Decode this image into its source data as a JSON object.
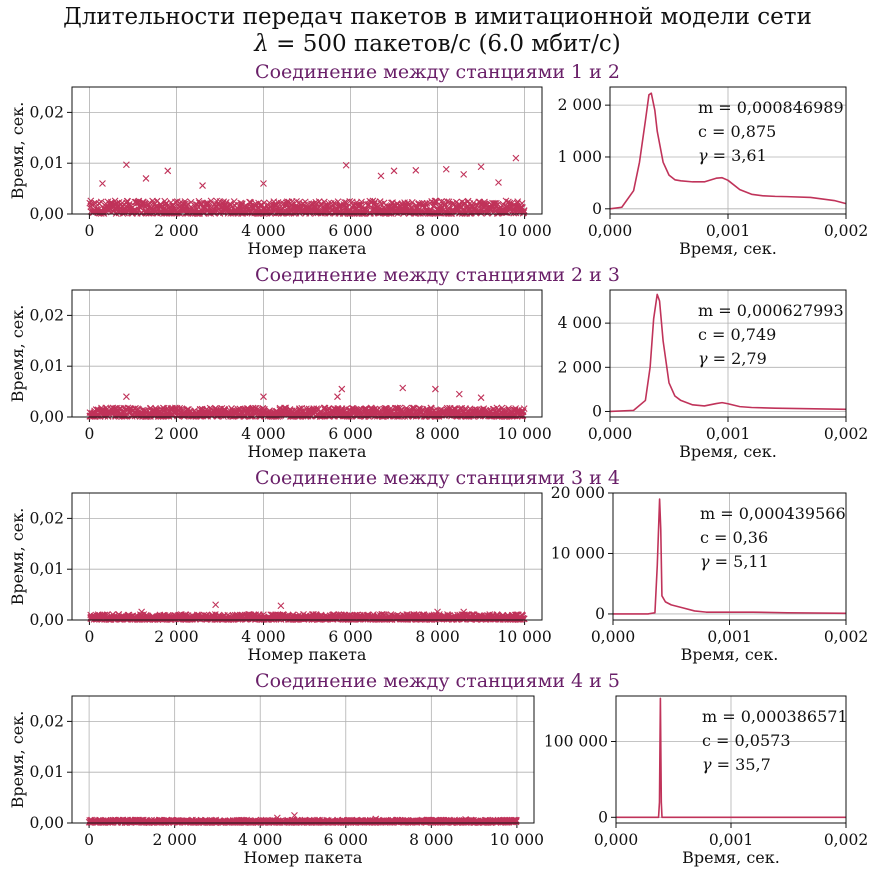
{
  "title": {
    "line1": "Длительности передач пакетов в имитационной модели сети",
    "line2_symbol": "λ",
    "line2_text": " = 500 пакетов/с (6.0 мбит/с)"
  },
  "colors": {
    "series": "#c0335a",
    "subtitle": "#6a2069",
    "grid": "#b0b0b0"
  },
  "chart_data": [
    {
      "subtitle": "Соединение между станциями 1 и 2",
      "scatter": {
        "type": "scatter",
        "marker": "x",
        "xlabel": "Номер пакета",
        "ylabel": "Время, сек.",
        "xlim": [
          -400,
          10400
        ],
        "ylim": [
          0,
          0.025
        ],
        "xticks": [
          0,
          2000,
          4000,
          6000,
          8000,
          10000
        ],
        "xtick_labels": [
          "0",
          "2 000",
          "4 000",
          "6 000",
          "8 000",
          "10 000"
        ],
        "yticks": [
          0,
          0.01,
          0.02
        ],
        "ytick_labels": [
          "0,00",
          "0,01",
          "0,02"
        ],
        "n": 10000,
        "band_max": 0.0025,
        "outliers": [
          [
            850,
            0.0097
          ],
          [
            1800,
            0.0085
          ],
          [
            5900,
            0.0096
          ],
          [
            7000,
            0.0085
          ],
          [
            7500,
            0.0086
          ],
          [
            8200,
            0.0088
          ],
          [
            9000,
            0.0093
          ],
          [
            9800,
            0.011
          ],
          [
            300,
            0.006
          ],
          [
            1300,
            0.007
          ],
          [
            4000,
            0.006
          ],
          [
            6700,
            0.0075
          ],
          [
            8600,
            0.0078
          ],
          [
            2600,
            0.0056
          ],
          [
            9400,
            0.0062
          ]
        ]
      },
      "density": {
        "type": "line",
        "xlabel": "Время, сек.",
        "xlim": [
          0,
          0.002
        ],
        "ylim": [
          -100,
          2350
        ],
        "xticks": [
          0,
          0.001,
          0.002
        ],
        "xtick_labels": [
          "0,000",
          "0,001",
          "0,002"
        ],
        "yticks": [
          0,
          1000,
          2000
        ],
        "ytick_labels": [
          "0",
          "1 000",
          "2 000"
        ],
        "x": [
          0,
          0.0001,
          0.0002,
          0.00025,
          0.0003,
          0.00033,
          0.00035,
          0.00038,
          0.0004,
          0.00045,
          0.0005,
          0.00055,
          0.0006,
          0.0007,
          0.0008,
          0.0009,
          0.00095,
          0.001,
          0.0011,
          0.0012,
          0.0013,
          0.0014,
          0.0015,
          0.0017,
          0.0019,
          0.002
        ],
        "y": [
          0,
          30,
          350,
          900,
          1700,
          2200,
          2230,
          1900,
          1500,
          900,
          650,
          560,
          540,
          520,
          520,
          590,
          600,
          550,
          370,
          280,
          250,
          240,
          235,
          220,
          160,
          100
        ]
      },
      "stats": {
        "m": "m = 0,000846989",
        "c": "c = 0,875",
        "gamma_symbol": "γ",
        "gamma_text": " = 3,61"
      }
    },
    {
      "subtitle": "Соединение между станциями 2 и 3",
      "scatter": {
        "type": "scatter",
        "marker": "x",
        "xlabel": "Номер пакета",
        "ylabel": "Время, сек.",
        "xlim": [
          -400,
          10400
        ],
        "ylim": [
          0,
          0.025
        ],
        "xticks": [
          0,
          2000,
          4000,
          6000,
          8000,
          10000
        ],
        "xtick_labels": [
          "0",
          "2 000",
          "4 000",
          "6 000",
          "8 000",
          "10 000"
        ],
        "yticks": [
          0,
          0.01,
          0.02
        ],
        "ytick_labels": [
          "0,00",
          "0,01",
          "0,02"
        ],
        "n": 10000,
        "band_max": 0.0017,
        "outliers": [
          [
            5800,
            0.0055
          ],
          [
            7200,
            0.0057
          ],
          [
            7950,
            0.0055
          ],
          [
            8500,
            0.0045
          ],
          [
            850,
            0.004
          ],
          [
            4000,
            0.004
          ],
          [
            5700,
            0.004
          ],
          [
            9000,
            0.0038
          ]
        ]
      },
      "density": {
        "type": "line",
        "xlabel": "Время, сек.",
        "xlim": [
          0,
          0.002
        ],
        "ylim": [
          -250,
          5500
        ],
        "xticks": [
          0,
          0.001,
          0.002
        ],
        "xtick_labels": [
          "0,000",
          "0,001",
          "0,002"
        ],
        "yticks": [
          0,
          2000,
          4000
        ],
        "ytick_labels": [
          "0",
          "2 000",
          "4 000"
        ],
        "x": [
          0,
          0.0002,
          0.0003,
          0.00034,
          0.00037,
          0.0004,
          0.00042,
          0.00045,
          0.0005,
          0.00055,
          0.0006,
          0.0007,
          0.0008,
          0.0009,
          0.00095,
          0.001,
          0.0011,
          0.0012,
          0.0014,
          0.0016,
          0.002
        ],
        "y": [
          0,
          50,
          500,
          2000,
          4200,
          5300,
          5000,
          3200,
          1300,
          700,
          500,
          300,
          250,
          360,
          400,
          350,
          220,
          180,
          150,
          130,
          100
        ]
      },
      "stats": {
        "m": "m = 0,000627993",
        "c": "c = 0,749",
        "gamma_symbol": "γ",
        "gamma_text": " = 2,79"
      }
    },
    {
      "subtitle": "Соединение между станциями 3 и 4",
      "scatter": {
        "type": "scatter",
        "marker": "x",
        "xlabel": "Номер пакета",
        "ylabel": "Время, сек.",
        "xlim": [
          -400,
          10400
        ],
        "ylim": [
          0,
          0.025
        ],
        "xticks": [
          0,
          2000,
          4000,
          6000,
          8000,
          10000
        ],
        "xtick_labels": [
          "0",
          "2 000",
          "4 000",
          "6 000",
          "8 000",
          "10 000"
        ],
        "yticks": [
          0,
          0.01,
          0.02
        ],
        "ytick_labels": [
          "0,00",
          "0,01",
          "0,02"
        ],
        "n": 10000,
        "band_max": 0.001,
        "outliers": [
          [
            2900,
            0.003
          ],
          [
            4400,
            0.0028
          ],
          [
            1200,
            0.0016
          ],
          [
            8000,
            0.0016
          ],
          [
            8600,
            0.0016
          ]
        ]
      },
      "density": {
        "type": "line",
        "xlabel": "Время, сек.",
        "xlim": [
          0,
          0.002
        ],
        "ylim": [
          -1000,
          20000
        ],
        "xticks": [
          0,
          0.001,
          0.002
        ],
        "xtick_labels": [
          "0,000",
          "0,001",
          "0,002"
        ],
        "yticks": [
          0,
          10000,
          20000
        ],
        "ytick_labels": [
          "0",
          "10 000",
          "20 000"
        ],
        "x": [
          0,
          0.0003,
          0.00036,
          0.00038,
          0.0004,
          0.00041,
          0.00042,
          0.00045,
          0.0005,
          0.0006,
          0.0007,
          0.0008,
          0.001,
          0.0012,
          0.0015,
          0.002
        ],
        "y": [
          0,
          0,
          200,
          8000,
          19000,
          14000,
          3000,
          2000,
          1500,
          1000,
          500,
          300,
          300,
          300,
          200,
          100
        ]
      },
      "stats": {
        "m": "m = 0,000439566",
        "c": "c = 0,36",
        "gamma_symbol": "γ",
        "gamma_text": " = 5,11"
      }
    },
    {
      "subtitle": "Соединение между станциями 4 и 5",
      "scatter": {
        "type": "scatter",
        "marker": "x",
        "xlabel": "Номер пакета",
        "ylabel": "Время, сек.",
        "xlim": [
          -400,
          10400
        ],
        "ylim": [
          0,
          0.025
        ],
        "xticks": [
          0,
          2000,
          4000,
          6000,
          8000,
          10000
        ],
        "xtick_labels": [
          "0",
          "2 000",
          "4 000",
          "6 000",
          "8 000",
          "10 000"
        ],
        "yticks": [
          0,
          0.01,
          0.02
        ],
        "ytick_labels": [
          "0,00",
          "0,01",
          "0,02"
        ],
        "n": 10000,
        "band_max": 0.0005,
        "outliers": [
          [
            4800,
            0.0015
          ],
          [
            4400,
            0.001
          ],
          [
            6700,
            0.0008
          ],
          [
            8800,
            0.0007
          ]
        ]
      },
      "density": {
        "type": "line",
        "xlabel": "Время, сек.",
        "xlim": [
          0,
          0.002
        ],
        "ylim": [
          -7500,
          160000
        ],
        "xticks": [
          0,
          0.001,
          0.002
        ],
        "xtick_labels": [
          "0,000",
          "0,001",
          "0,002"
        ],
        "yticks": [
          0,
          100000
        ],
        "ytick_labels": [
          "0",
          "100 000"
        ],
        "x": [
          0,
          0.00037,
          0.000378,
          0.000386,
          0.000394,
          0.0004,
          0.002
        ],
        "y": [
          0,
          0,
          20000,
          157000,
          20000,
          0,
          0
        ]
      },
      "stats": {
        "m": "m = 0,000386571",
        "c": "c = 0,0573",
        "gamma_symbol": "γ",
        "gamma_text": " = 35,7"
      }
    }
  ]
}
